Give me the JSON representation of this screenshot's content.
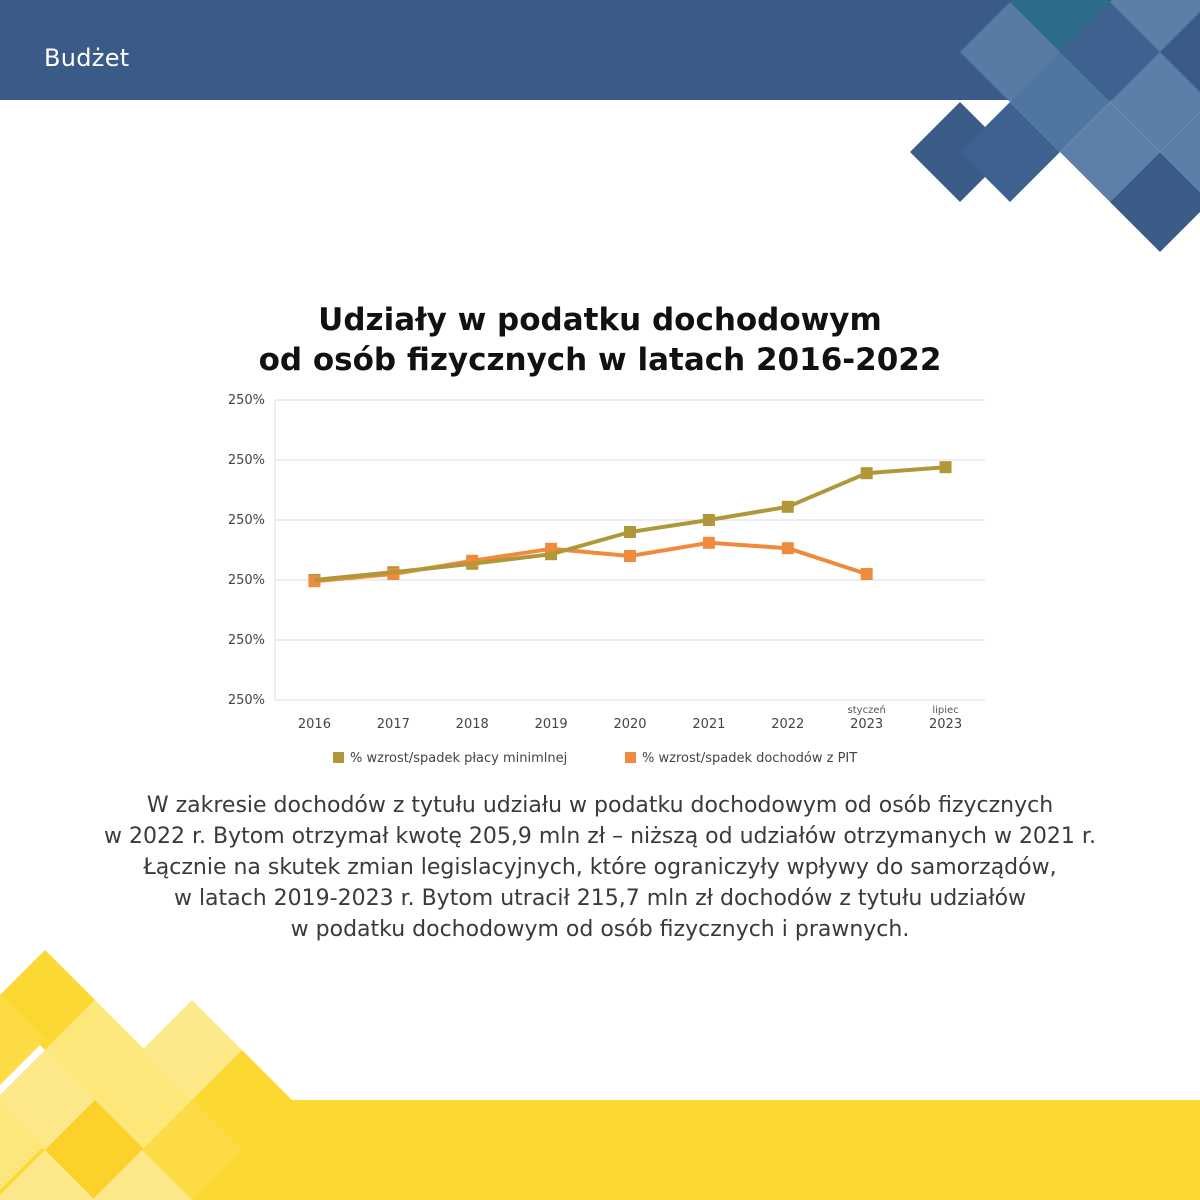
{
  "header": {
    "section_label": "Budżet"
  },
  "colors": {
    "header_blue": "#3a5a87",
    "footer_yellow": "#fcd932",
    "series_wage": "#b0973a",
    "series_pit": "#f08a3c"
  },
  "chart_data": {
    "type": "line",
    "title_lines": [
      "Udziały w podatku dochodowym",
      "od osób fizycznych w latach 2016-2022"
    ],
    "y_tick_labels": [
      "250%",
      "250%",
      "250%",
      "250%",
      "250%",
      "250%"
    ],
    "ylim": [
      0,
      5
    ],
    "categories": [
      {
        "sub": "",
        "main": "2016"
      },
      {
        "sub": "",
        "main": "2017"
      },
      {
        "sub": "",
        "main": "2018"
      },
      {
        "sub": "",
        "main": "2019"
      },
      {
        "sub": "",
        "main": "2020"
      },
      {
        "sub": "",
        "main": "2021"
      },
      {
        "sub": "",
        "main": "2022"
      },
      {
        "sub": "styczeń",
        "main": "2023"
      },
      {
        "sub": "lipiec",
        "main": "2023"
      }
    ],
    "series": [
      {
        "name": "% wzrost/spadek płacy minimlnej",
        "color": "#b0973a",
        "values": [
          2.0,
          2.13,
          2.27,
          2.43,
          2.8,
          3.0,
          3.22,
          3.78,
          3.88
        ]
      },
      {
        "name": "% wzrost/spadek dochodów z PIT",
        "color": "#f08a3c",
        "values": [
          1.98,
          2.1,
          2.32,
          2.52,
          2.4,
          2.62,
          2.53,
          2.1,
          null
        ]
      }
    ],
    "grid": "horizontal",
    "legend": "bottom-center"
  },
  "description_lines": [
    "W zakresie dochodów z tytułu udziału w podatku dochodowym od osób fizycznych",
    "w 2022 r. Bytom otrzymał kwotę 205,9 mln zł – niższą od udziałów otrzymanych w 2021 r.",
    "Łącznie na skutek zmian legislacyjnych, które ograniczyły wpływy do samorządów,",
    "w latach 2019-2023 r. Bytom utracił 215,7 mln zł dochodów z tytułu udziałów",
    "w podatku dochodowym od osób fizycznych i prawnych."
  ]
}
